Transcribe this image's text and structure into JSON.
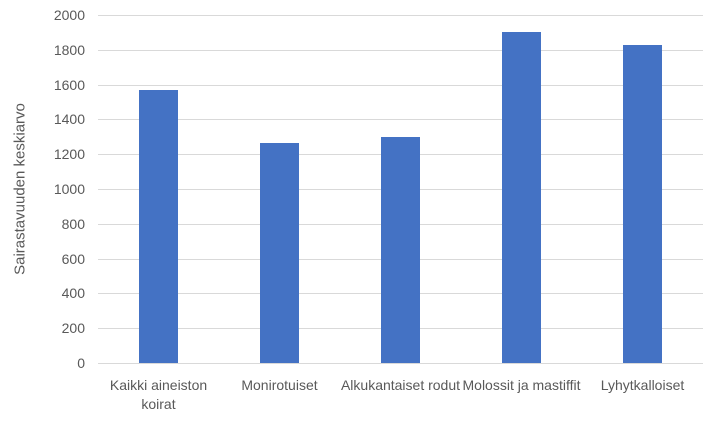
{
  "chart_data": {
    "type": "bar",
    "title": "",
    "categories": [
      "Kaikki aineiston koirat",
      "Monirotuiset",
      "Alkukantaiset rodut",
      "Molossit ja mastiffit",
      "Lyhytkalloiset"
    ],
    "values": [
      1570,
      1265,
      1300,
      1900,
      1830
    ],
    "xlabel": "",
    "ylabel": "Sairastavuuden keskiarvo",
    "ylim": [
      0,
      2000
    ],
    "ytick_step": 200,
    "ytick_labels": [
      "0",
      "200",
      "400",
      "600",
      "800",
      "1000",
      "1200",
      "1400",
      "1600",
      "1800",
      "2000"
    ],
    "grid": true,
    "legend": null,
    "bar_color": "#4472C4",
    "gridline_color": "#D9D9D9",
    "axis_line_color": "#D9D9D9",
    "text_color": "#595959",
    "background_color": "#FFFFFF"
  }
}
